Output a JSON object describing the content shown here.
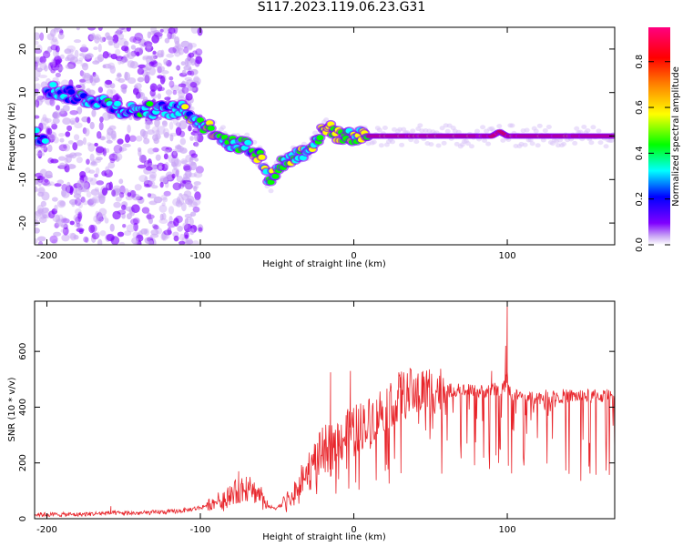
{
  "title": "S117.2023.119.06.23.G31",
  "colors": {
    "snr_line": "#e8242a",
    "axis": "#000000",
    "background": "#ffffff"
  },
  "chart_data": [
    {
      "type": "heatmap",
      "name": "spectrogram",
      "xlabel": "Height of straight line (km)",
      "ylabel": "Frequency (Hz)",
      "xlim": [
        -208,
        170
      ],
      "ylim": [
        -25,
        25
      ],
      "xticks": [
        -200,
        -100,
        0,
        100
      ],
      "yticks": [
        -20,
        -10,
        0,
        10,
        20
      ],
      "colorbar": {
        "label": "Normalized spectral amplitude",
        "range": [
          0,
          0.95
        ],
        "ticks": [
          0.0,
          0.2,
          0.4,
          0.6,
          0.8
        ],
        "tick_labels": [
          "0.0",
          "0.2",
          "0.4",
          "0.6",
          "0.8"
        ],
        "colormap": [
          "#ffffff",
          "#7f00ff",
          "#0000ff",
          "#00ffff",
          "#00ff00",
          "#ffff00",
          "#ff7f00",
          "#ff0000",
          "#ff0080"
        ]
      },
      "ridge": [
        {
          "x": -200,
          "y": 11
        },
        {
          "x": -180,
          "y": 9
        },
        {
          "x": -165,
          "y": 8
        },
        {
          "x": -150,
          "y": 6
        },
        {
          "x": -120,
          "y": 6
        },
        {
          "x": -110,
          "y": 6
        },
        {
          "x": -100,
          "y": 3
        },
        {
          "x": -90,
          "y": 1
        },
        {
          "x": -80,
          "y": -2
        },
        {
          "x": -70,
          "y": -2
        },
        {
          "x": -60,
          "y": -5
        },
        {
          "x": -55,
          "y": -11
        },
        {
          "x": -50,
          "y": -7
        },
        {
          "x": -45,
          "y": -6
        },
        {
          "x": -40,
          "y": -5
        },
        {
          "x": -30,
          "y": -3
        },
        {
          "x": -20,
          "y": 1
        },
        {
          "x": -15,
          "y": 2
        },
        {
          "x": -10,
          "y": 0
        },
        {
          "x": 0,
          "y": 0
        },
        {
          "x": 10,
          "y": 0
        },
        {
          "x": 50,
          "y": 0
        },
        {
          "x": 90,
          "y": 0
        },
        {
          "x": 95,
          "y": 1
        },
        {
          "x": 100,
          "y": 0
        },
        {
          "x": 170,
          "y": 0
        }
      ]
    },
    {
      "type": "line",
      "name": "snr",
      "xlabel": "Height of straight line (km)",
      "ylabel": "SNR (10 * v/v)",
      "xlim": [
        -208,
        170
      ],
      "ylim": [
        0,
        780
      ],
      "xticks": [
        -200,
        -100,
        0,
        100
      ],
      "yticks": [
        0,
        200,
        400,
        600
      ],
      "series": [
        {
          "x": [
            -208,
            -200,
            -180,
            -160,
            -140,
            -120,
            -110,
            -100,
            -90,
            -80,
            -70,
            -60,
            -55,
            -50,
            -40,
            -30,
            -20,
            -10,
            0,
            10,
            20,
            30,
            40,
            50,
            60,
            70,
            80,
            90,
            98,
            100,
            102,
            110,
            120,
            130,
            140,
            150,
            160,
            170
          ],
          "values": [
            15,
            15,
            15,
            20,
            20,
            25,
            30,
            40,
            60,
            90,
            110,
            85,
            40,
            40,
            80,
            170,
            240,
            280,
            320,
            350,
            400,
            440,
            455,
            465,
            460,
            460,
            455,
            460,
            470,
            520,
            440,
            440,
            435,
            440,
            440,
            440,
            440,
            440
          ]
        }
      ],
      "spikes": [
        {
          "x": -158,
          "y": 45
        },
        {
          "x": -75,
          "y": 170
        },
        {
          "x": -70,
          "y": 150
        },
        {
          "x": -15,
          "y": 525
        },
        {
          "x": -2,
          "y": 530
        },
        {
          "x": 30,
          "y": 515
        },
        {
          "x": 90,
          "y": 530
        },
        {
          "x": 99,
          "y": 620
        },
        {
          "x": 100,
          "y": 780
        },
        {
          "x": 101,
          "y": 190
        }
      ]
    }
  ]
}
